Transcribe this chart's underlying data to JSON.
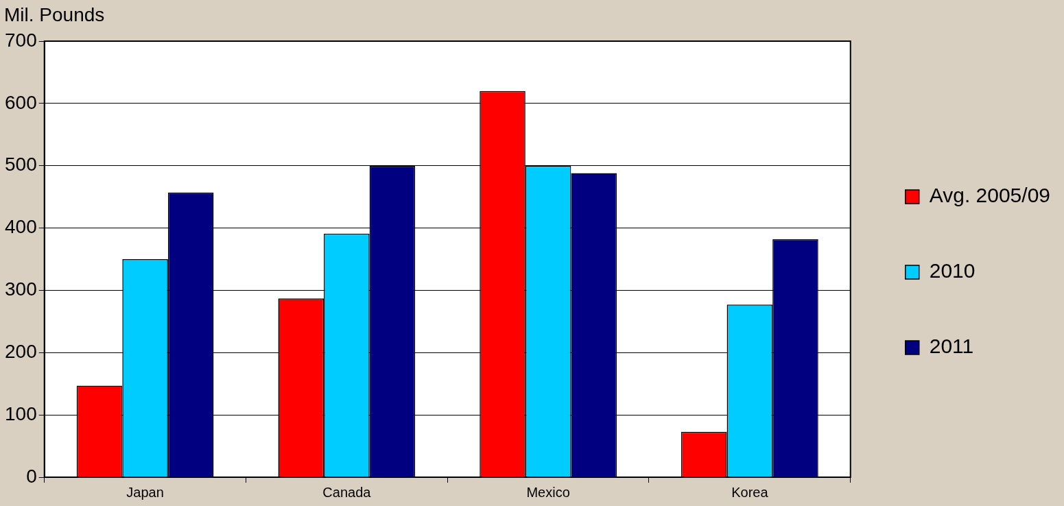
{
  "chart_data": {
    "type": "bar",
    "ylabel": "Mil. Pounds",
    "categories": [
      "Japan",
      "Canada",
      "Mexico",
      "Korea"
    ],
    "series": [
      {
        "name": "Avg. 2005/09",
        "color": "#ff0000",
        "values": [
          147,
          287,
          620,
          73
        ]
      },
      {
        "name": "2010",
        "color": "#00ccff",
        "values": [
          350,
          391,
          500,
          277
        ]
      },
      {
        "name": "2011",
        "color": "#000080",
        "values": [
          457,
          500,
          488,
          382
        ]
      }
    ],
    "ylim": [
      0,
      700
    ],
    "yticks": [
      0,
      100,
      200,
      300,
      400,
      500,
      600,
      700
    ],
    "grid": "y",
    "legend": "right"
  }
}
